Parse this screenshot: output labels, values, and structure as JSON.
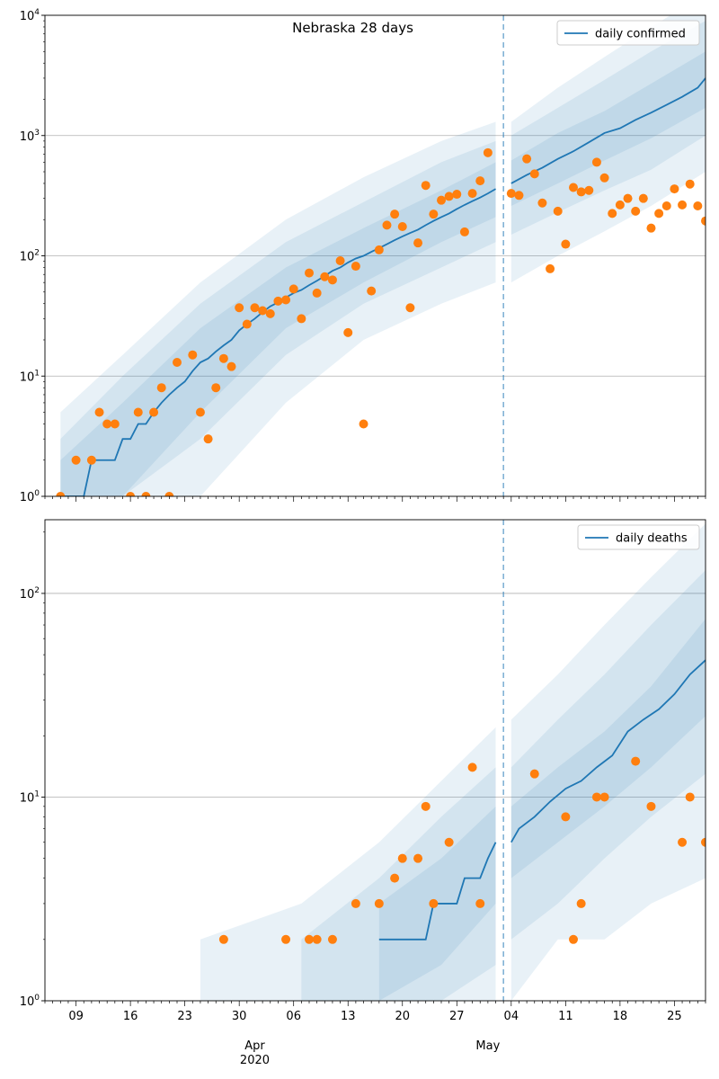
{
  "chart_data": [
    {
      "type": "line",
      "title": "Nebraska 28 days",
      "yscale": "log",
      "ylim": [
        1,
        10000
      ],
      "ytick_values": [
        1,
        10,
        100,
        1000,
        10000
      ],
      "ytick_labels": [
        "10^0",
        "10^1",
        "10^2",
        "10^3",
        "10^4"
      ],
      "x_range": [
        "2020-03-05",
        "2020-05-29"
      ],
      "forecast_start": "2020-05-03",
      "legend": "top-right",
      "grid": "y-major",
      "series": [
        {
          "name": "daily confirmed",
          "kind": "median-line",
          "x": [
            "2020-03-07",
            "2020-03-10",
            "2020-03-11",
            "2020-03-14",
            "2020-03-15",
            "2020-03-16",
            "2020-03-17",
            "2020-03-18",
            "2020-03-19",
            "2020-03-20",
            "2020-03-21",
            "2020-03-22",
            "2020-03-23",
            "2020-03-24",
            "2020-03-25",
            "2020-03-26",
            "2020-03-27",
            "2020-03-28",
            "2020-03-29",
            "2020-03-30",
            "2020-03-31",
            "2020-04-01",
            "2020-04-02",
            "2020-04-03",
            "2020-04-04",
            "2020-04-05",
            "2020-04-06",
            "2020-04-07",
            "2020-04-08",
            "2020-04-09",
            "2020-04-10",
            "2020-04-11",
            "2020-04-12",
            "2020-04-13",
            "2020-04-14",
            "2020-04-15",
            "2020-04-16",
            "2020-04-17",
            "2020-04-18",
            "2020-04-19",
            "2020-04-20",
            "2020-04-21",
            "2020-04-22",
            "2020-04-23",
            "2020-04-24",
            "2020-04-25",
            "2020-04-26",
            "2020-04-27",
            "2020-04-28",
            "2020-04-29",
            "2020-04-30",
            "2020-05-01",
            "2020-05-02"
          ],
          "values": [
            1,
            1,
            2,
            2,
            3,
            3,
            4,
            4,
            5,
            6,
            7,
            8,
            9,
            11,
            13,
            14,
            16,
            18,
            20,
            24,
            27,
            30,
            34,
            38,
            41,
            45,
            49,
            52,
            57,
            62,
            68,
            75,
            80,
            88,
            95,
            100,
            108,
            116,
            125,
            135,
            145,
            155,
            165,
            180,
            195,
            210,
            225,
            245,
            265,
            285,
            305,
            330,
            360
          ]
        },
        {
          "name": "",
          "kind": "forecast-median",
          "x": [
            "2020-05-04",
            "2020-05-06",
            "2020-05-08",
            "2020-05-10",
            "2020-05-12",
            "2020-05-14",
            "2020-05-16",
            "2020-05-18",
            "2020-05-20",
            "2020-05-22",
            "2020-05-24",
            "2020-05-26",
            "2020-05-28",
            "2020-05-29"
          ],
          "values": [
            400,
            470,
            540,
            640,
            740,
            880,
            1050,
            1150,
            1350,
            1550,
            1800,
            2100,
            2500,
            3000
          ]
        },
        {
          "name": "",
          "kind": "observed-points",
          "x": [
            "2020-03-07",
            "2020-03-09",
            "2020-03-11",
            "2020-03-12",
            "2020-03-13",
            "2020-03-14",
            "2020-03-16",
            "2020-03-17",
            "2020-03-18",
            "2020-03-19",
            "2020-03-20",
            "2020-03-21",
            "2020-03-22",
            "2020-03-24",
            "2020-03-25",
            "2020-03-26",
            "2020-03-27",
            "2020-03-28",
            "2020-03-29",
            "2020-03-30",
            "2020-03-31",
            "2020-04-01",
            "2020-04-02",
            "2020-04-03",
            "2020-04-04",
            "2020-04-05",
            "2020-04-06",
            "2020-04-07",
            "2020-04-08",
            "2020-04-09",
            "2020-04-10",
            "2020-04-11",
            "2020-04-12",
            "2020-04-13",
            "2020-04-14",
            "2020-04-15",
            "2020-04-16",
            "2020-04-17",
            "2020-04-18",
            "2020-04-19",
            "2020-04-20",
            "2020-04-21",
            "2020-04-22",
            "2020-04-23",
            "2020-04-24",
            "2020-04-25",
            "2020-04-26",
            "2020-04-27",
            "2020-04-28",
            "2020-04-29",
            "2020-04-30",
            "2020-05-01",
            "2020-05-04",
            "2020-05-05",
            "2020-05-06",
            "2020-05-07",
            "2020-05-08",
            "2020-05-09",
            "2020-05-10",
            "2020-05-11",
            "2020-05-12",
            "2020-05-13",
            "2020-05-14",
            "2020-05-15",
            "2020-05-16",
            "2020-05-17",
            "2020-05-18",
            "2020-05-19",
            "2020-05-20",
            "2020-05-21",
            "2020-05-22",
            "2020-05-23",
            "2020-05-24",
            "2020-05-25",
            "2020-05-26",
            "2020-05-27",
            "2020-05-28",
            "2020-05-29"
          ],
          "values": [
            1,
            2,
            2,
            5,
            4,
            4,
            1,
            5,
            1,
            5,
            8,
            1,
            13,
            15,
            5,
            3,
            8,
            14,
            12,
            37,
            27,
            37,
            35,
            33,
            42,
            43,
            53,
            30,
            72,
            49,
            67,
            63,
            91,
            23,
            82,
            4,
            51,
            112,
            180,
            222,
            175,
            37,
            128,
            385,
            222,
            290,
            312,
            325,
            158,
            330,
            420,
            720,
            330,
            318,
            640,
            480,
            275,
            78,
            235,
            125,
            370,
            340,
            350,
            600,
            445,
            225,
            265,
            300,
            235,
            300,
            170,
            225,
            260,
            360,
            265,
            395,
            260,
            195
          ]
        }
      ],
      "bands": [
        {
          "name": "",
          "level": "inner",
          "x": [
            "2020-03-07",
            "2020-03-15",
            "2020-03-25",
            "2020-04-05",
            "2020-04-15",
            "2020-04-25",
            "2020-05-02",
            "2020-05-04",
            "2020-05-10",
            "2020-05-16",
            "2020-05-22",
            "2020-05-29"
          ],
          "lower": [
            1,
            1,
            5,
            25,
            60,
            130,
            210,
            260,
            400,
            620,
            950,
            1700
          ],
          "upper": [
            2,
            6,
            25,
            80,
            170,
            350,
            600,
            620,
            1050,
            1600,
            2700,
            5000
          ]
        },
        {
          "name": "",
          "level": "middle",
          "x": [
            "2020-03-07",
            "2020-03-15",
            "2020-03-25",
            "2020-04-05",
            "2020-04-15",
            "2020-04-25",
            "2020-05-02",
            "2020-05-04",
            "2020-05-10",
            "2020-05-16",
            "2020-05-22",
            "2020-05-29"
          ],
          "lower": [
            1,
            1,
            3,
            15,
            40,
            80,
            130,
            150,
            230,
            350,
            520,
            1000
          ],
          "upper": [
            3,
            10,
            40,
            130,
            280,
            600,
            900,
            1000,
            1700,
            2900,
            5000,
            9000
          ]
        },
        {
          "name": "",
          "level": "outer",
          "x": [
            "2020-03-07",
            "2020-03-15",
            "2020-03-25",
            "2020-04-05",
            "2020-04-15",
            "2020-04-25",
            "2020-05-02",
            "2020-05-04",
            "2020-05-10",
            "2020-05-16",
            "2020-05-22",
            "2020-05-29"
          ],
          "lower": [
            1,
            1,
            1,
            6,
            20,
            40,
            60,
            60,
            100,
            160,
            260,
            500
          ],
          "upper": [
            5,
            15,
            60,
            200,
            450,
            900,
            1300,
            1300,
            2500,
            4500,
            8000,
            15000
          ]
        }
      ]
    },
    {
      "type": "line",
      "title": "",
      "yscale": "log",
      "ylim": [
        1,
        230
      ],
      "ytick_values": [
        1,
        10,
        100
      ],
      "ytick_labels": [
        "10^0",
        "10^1",
        "10^2"
      ],
      "x_range": [
        "2020-03-05",
        "2020-05-29"
      ],
      "forecast_start": "2020-05-03",
      "legend": "top-right",
      "grid": "y-major",
      "xtick_labels": [
        "09",
        "16",
        "23",
        "30",
        "06",
        "13",
        "20",
        "27",
        "04",
        "11",
        "18",
        "25"
      ],
      "month_labels": [
        "Apr",
        "May"
      ],
      "year_label": "2020",
      "series": [
        {
          "name": "daily deaths",
          "kind": "median-line",
          "x": [
            "2020-04-17",
            "2020-04-18",
            "2020-04-23",
            "2020-04-24",
            "2020-04-27",
            "2020-04-28",
            "2020-04-30",
            "2020-05-01",
            "2020-05-02"
          ],
          "values": [
            2,
            2,
            2,
            3,
            3,
            4,
            4,
            5,
            6
          ]
        },
        {
          "name": "",
          "kind": "forecast-median",
          "x": [
            "2020-05-04",
            "2020-05-05",
            "2020-05-07",
            "2020-05-09",
            "2020-05-11",
            "2020-05-13",
            "2020-05-15",
            "2020-05-17",
            "2020-05-19",
            "2020-05-21",
            "2020-05-23",
            "2020-05-25",
            "2020-05-27",
            "2020-05-29"
          ],
          "values": [
            6,
            7,
            8,
            9.5,
            11,
            12,
            14,
            16,
            21,
            24,
            27,
            32,
            40,
            47
          ]
        },
        {
          "name": "",
          "kind": "observed-points",
          "x": [
            "2020-03-28",
            "2020-04-05",
            "2020-04-08",
            "2020-04-09",
            "2020-04-11",
            "2020-04-14",
            "2020-04-17",
            "2020-04-19",
            "2020-04-20",
            "2020-04-22",
            "2020-04-23",
            "2020-04-24",
            "2020-04-26",
            "2020-04-29",
            "2020-04-30",
            "2020-05-07",
            "2020-05-11",
            "2020-05-12",
            "2020-05-13",
            "2020-05-15",
            "2020-05-16",
            "2020-05-20",
            "2020-05-22",
            "2020-05-26",
            "2020-05-27",
            "2020-05-29"
          ],
          "values": [
            2,
            2,
            2,
            2,
            2,
            3,
            3,
            4,
            5,
            5,
            9,
            3,
            6,
            14,
            3,
            13,
            8,
            2,
            3,
            10,
            10,
            15,
            9,
            6,
            10,
            6
          ]
        }
      ],
      "bands": [
        {
          "name": "",
          "level": "inner",
          "x": [
            "2020-04-17",
            "2020-04-25",
            "2020-05-02",
            "2020-05-04",
            "2020-05-10",
            "2020-05-16",
            "2020-05-22",
            "2020-05-29"
          ],
          "lower": [
            1,
            1.5,
            3,
            4,
            6,
            9,
            14,
            25
          ],
          "upper": [
            3,
            5,
            9,
            9,
            14,
            21,
            35,
            75
          ]
        },
        {
          "name": "",
          "level": "middle",
          "x": [
            "2020-04-07",
            "2020-04-17",
            "2020-04-25",
            "2020-05-02",
            "2020-05-04",
            "2020-05-10",
            "2020-05-16",
            "2020-05-22",
            "2020-05-29"
          ],
          "lower": [
            1,
            1,
            1,
            1.5,
            2,
            3,
            5,
            8,
            13
          ],
          "upper": [
            2,
            4,
            8,
            14,
            14,
            24,
            40,
            70,
            130
          ]
        },
        {
          "name": "",
          "level": "outer",
          "x": [
            "2020-03-25",
            "2020-04-07",
            "2020-04-17",
            "2020-04-25",
            "2020-05-02",
            "2020-05-04",
            "2020-05-10",
            "2020-05-16",
            "2020-05-22",
            "2020-05-29"
          ],
          "lower": [
            1,
            1,
            1,
            1,
            1,
            1,
            2,
            2,
            3,
            4
          ],
          "upper": [
            2,
            3,
            6,
            12,
            22,
            24,
            40,
            70,
            120,
            220
          ]
        }
      ]
    }
  ]
}
